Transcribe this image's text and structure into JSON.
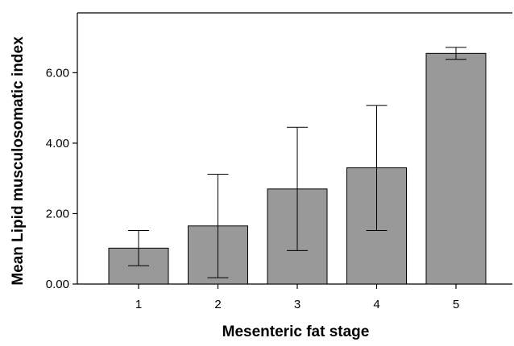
{
  "chart_data": {
    "type": "bar",
    "title": "",
    "xlabel": "Mesenteric fat stage",
    "ylabel": "Mean Lipid musculosomatic index",
    "categories": [
      "1",
      "2",
      "3",
      "4",
      "5"
    ],
    "values": [
      1.02,
      1.65,
      2.7,
      3.3,
      6.55
    ],
    "error_low": [
      0.52,
      0.18,
      0.95,
      1.52,
      6.38
    ],
    "error_high": [
      1.52,
      3.12,
      4.45,
      5.07,
      6.72
    ],
    "ylim": [
      0,
      7.7
    ],
    "yticks": [
      0,
      2,
      4,
      6
    ],
    "ytick_labels": [
      "0.00",
      "2.00",
      "4.00",
      "6.00"
    ],
    "bar_color": "#999999",
    "grid": false,
    "legend": false
  }
}
